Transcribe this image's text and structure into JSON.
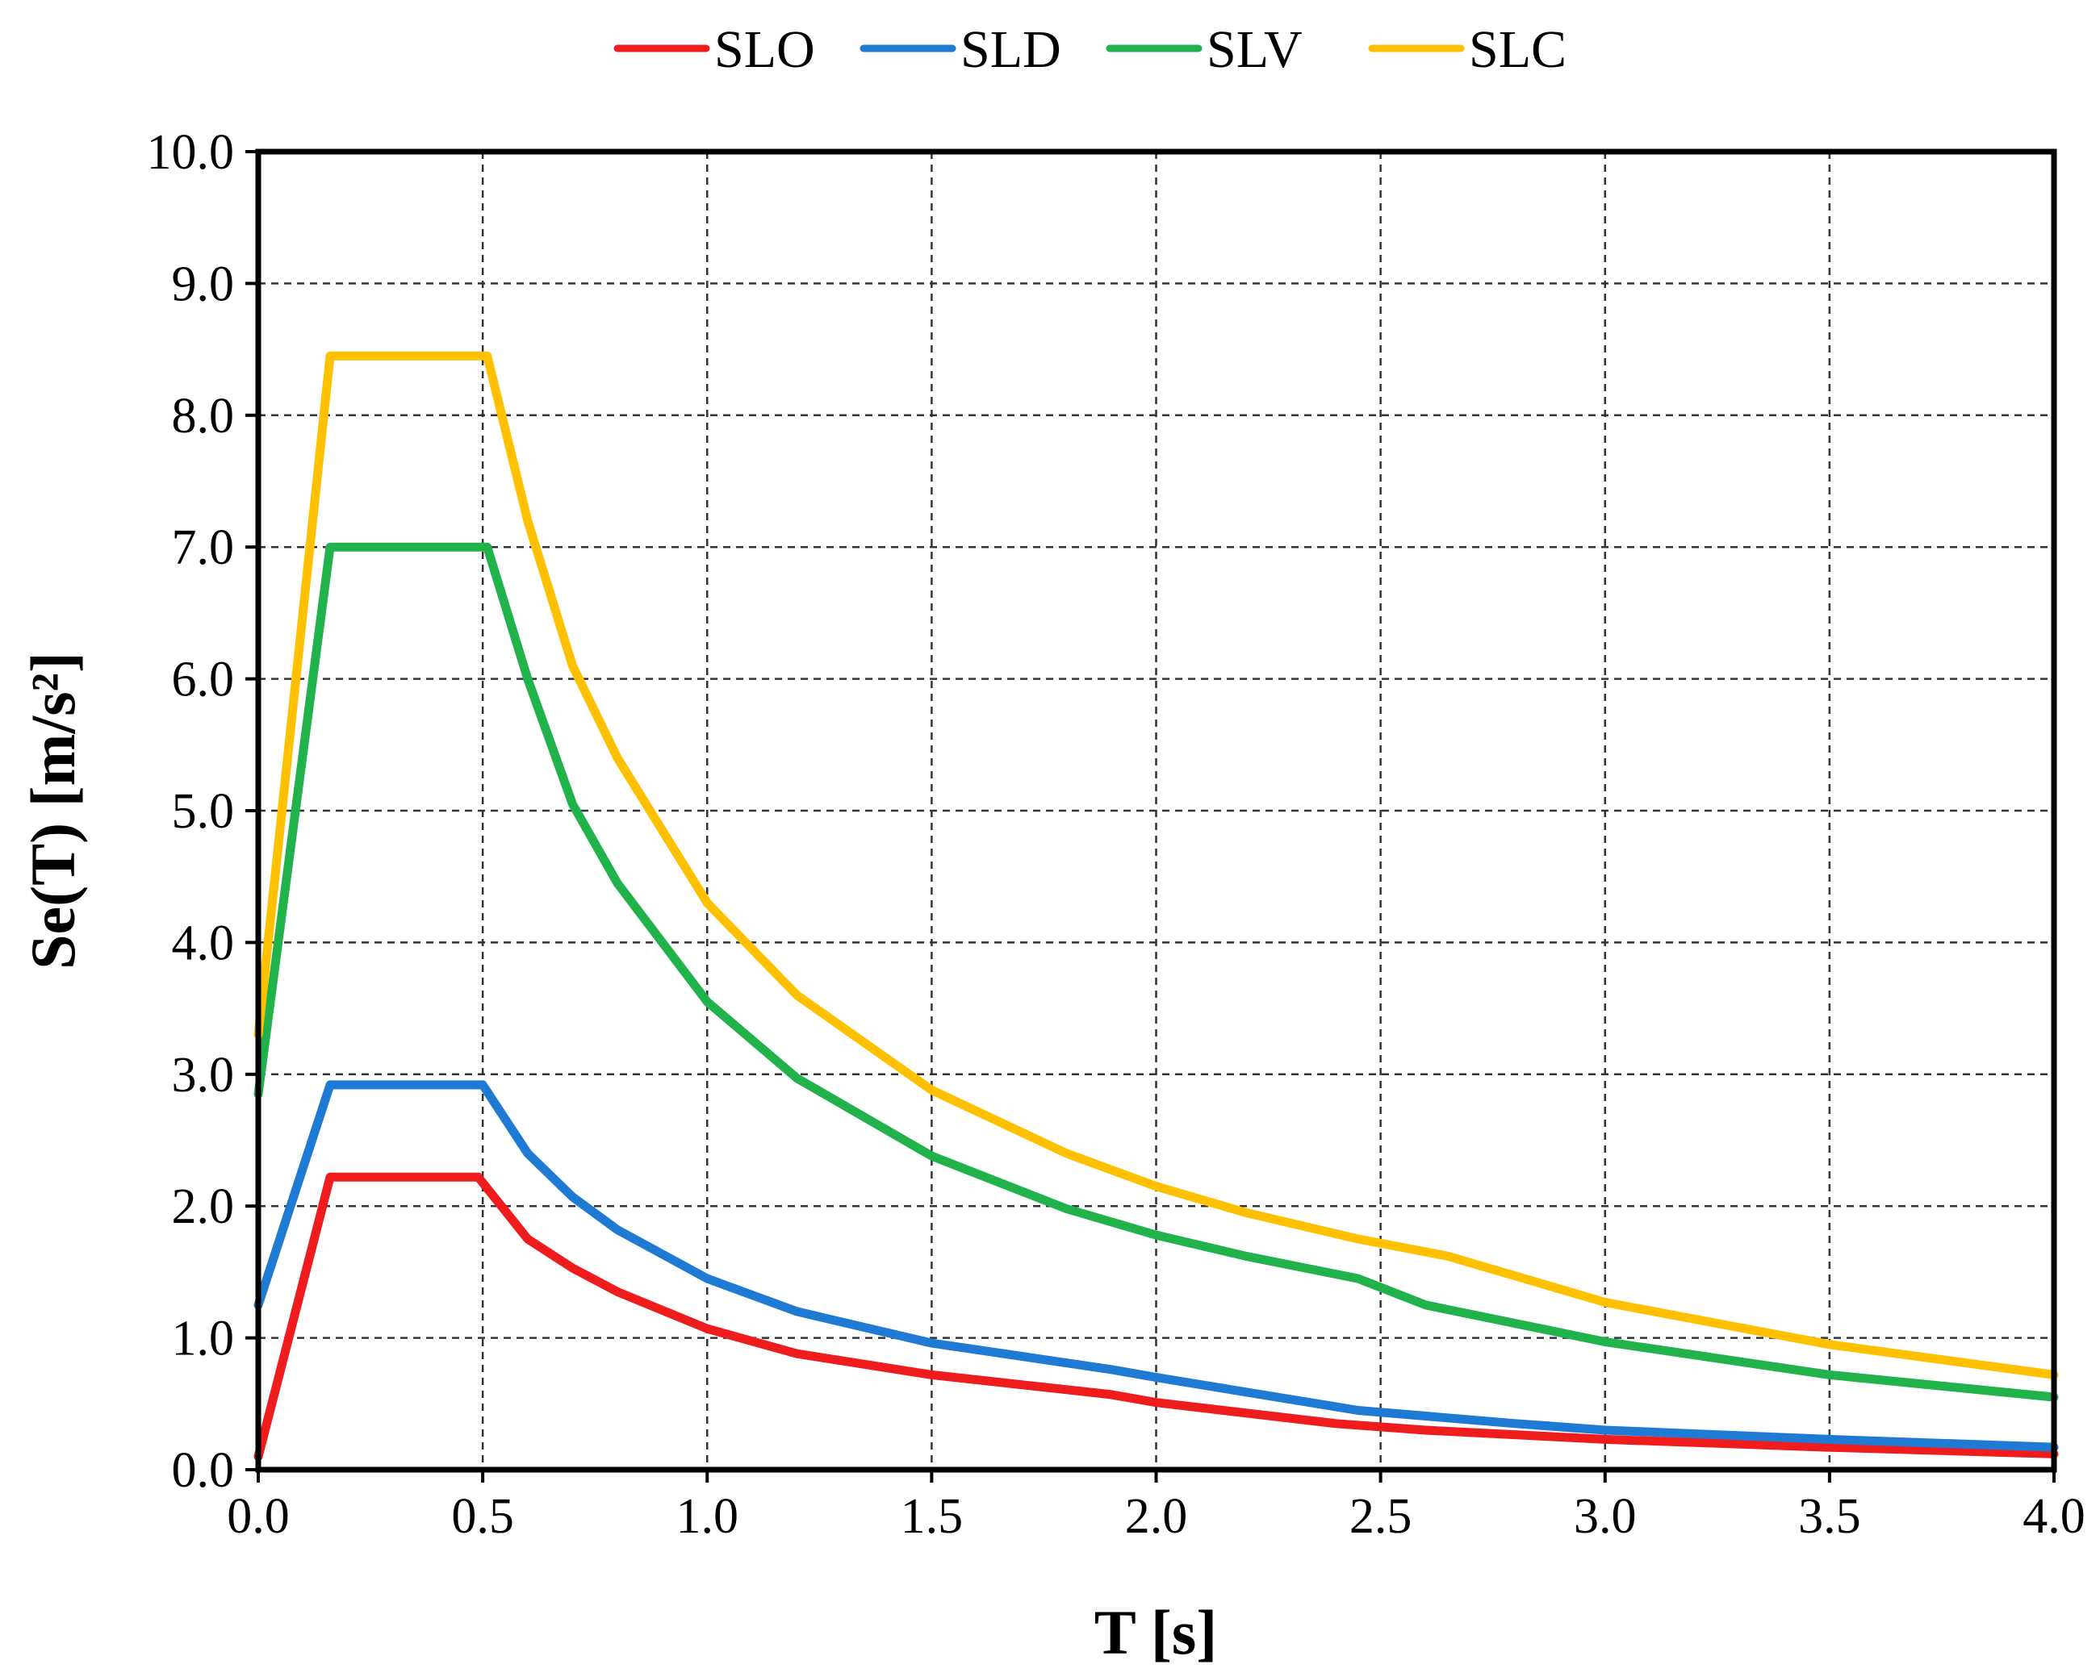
{
  "chart_data": {
    "type": "line",
    "title": "",
    "xlabel": "T [s]",
    "ylabel": "Se(T) [m/s²]",
    "xlim": [
      0,
      4
    ],
    "ylim": [
      0,
      10
    ],
    "xticks": [
      0,
      0.5,
      1,
      1.5,
      2,
      2.5,
      3,
      3.5,
      4
    ],
    "yticks": [
      0,
      1,
      2,
      3,
      4,
      5,
      6,
      7,
      8,
      9,
      10
    ],
    "xtick_labels": [
      "0.0",
      "0.5",
      "1.0",
      "1.5",
      "2.0",
      "2.5",
      "3.0",
      "3.5",
      "4.0"
    ],
    "ytick_labels": [
      "0.0",
      "1.0",
      "2.0",
      "3.0",
      "4.0",
      "5.0",
      "6.0",
      "7.0",
      "8.0",
      "9.0",
      "10.0"
    ],
    "grid": true,
    "legend_position": "top",
    "series": [
      {
        "name": "SLO",
        "color": "#ee1c1c",
        "x": [
          0,
          0.16,
          0.49,
          0.6,
          0.7,
          0.8,
          1.0,
          1.2,
          1.5,
          1.9,
          2.0,
          2.4,
          2.6,
          3.0,
          3.5,
          4.0
        ],
        "y": [
          0.1,
          2.22,
          2.22,
          1.75,
          1.53,
          1.35,
          1.07,
          0.88,
          0.72,
          0.57,
          0.51,
          0.35,
          0.3,
          0.23,
          0.17,
          0.12
        ]
      },
      {
        "name": "SLD",
        "color": "#1f7ad4",
        "x": [
          0,
          0.16,
          0.5,
          0.6,
          0.7,
          0.8,
          1.0,
          1.2,
          1.5,
          1.9,
          2.0,
          2.45,
          2.8,
          3.0,
          3.5,
          4.0
        ],
        "y": [
          1.25,
          2.92,
          2.92,
          2.4,
          2.07,
          1.82,
          1.45,
          1.2,
          0.96,
          0.76,
          0.7,
          0.45,
          0.35,
          0.3,
          0.23,
          0.17
        ]
      },
      {
        "name": "SLV",
        "color": "#22b24c",
        "x": [
          0,
          0.16,
          0.51,
          0.6,
          0.7,
          0.8,
          1.0,
          1.2,
          1.5,
          1.8,
          2.0,
          2.2,
          2.45,
          2.6,
          3.0,
          3.5,
          4.0
        ],
        "y": [
          2.85,
          7.0,
          7.0,
          6.0,
          5.05,
          4.45,
          3.55,
          2.97,
          2.38,
          1.98,
          1.78,
          1.62,
          1.45,
          1.25,
          0.97,
          0.72,
          0.55
        ]
      },
      {
        "name": "SLC",
        "color": "#ffc000",
        "x": [
          0,
          0.16,
          0.51,
          0.6,
          0.7,
          0.8,
          1.0,
          1.2,
          1.5,
          1.8,
          2.0,
          2.2,
          2.45,
          2.65,
          3.0,
          3.5,
          4.0
        ],
        "y": [
          3.3,
          8.45,
          8.45,
          7.2,
          6.1,
          5.4,
          4.3,
          3.6,
          2.88,
          2.4,
          2.15,
          1.95,
          1.75,
          1.62,
          1.27,
          0.95,
          0.72
        ]
      }
    ]
  }
}
